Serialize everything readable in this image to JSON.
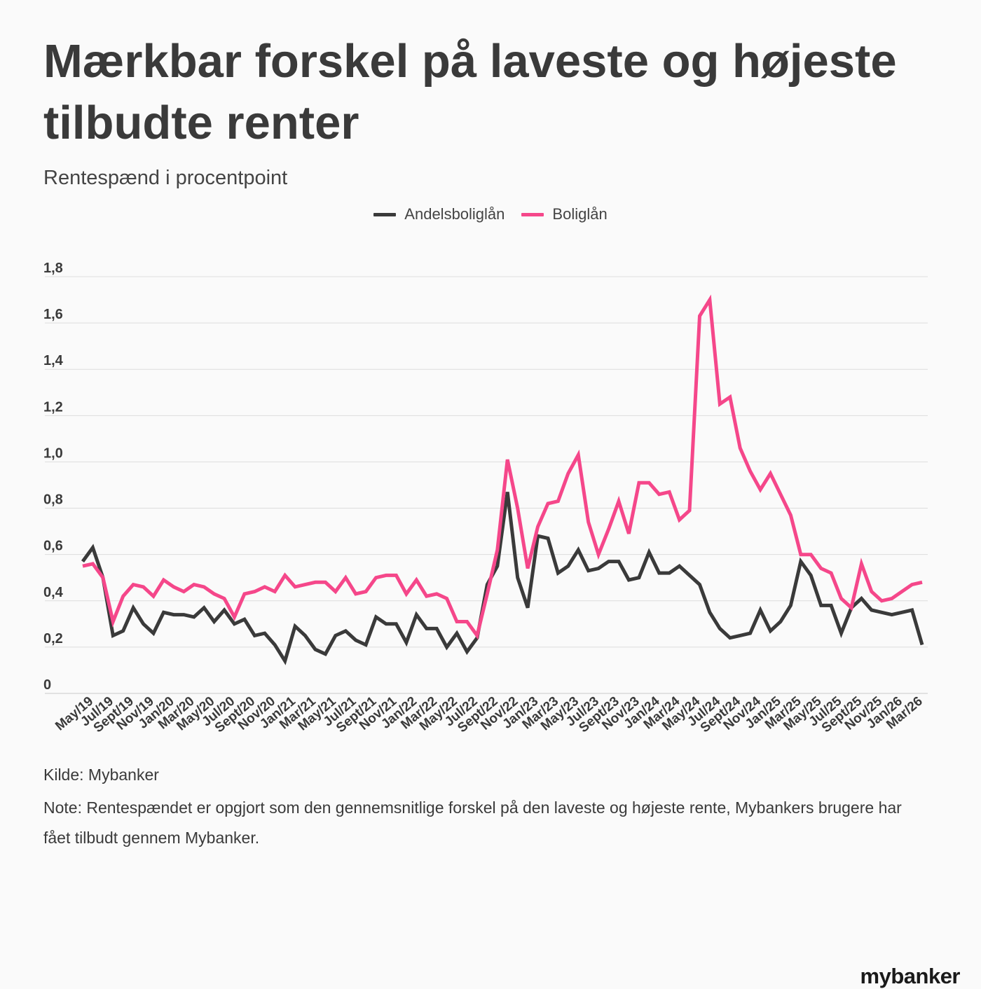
{
  "header": {
    "title": "Mærkbar forskel på laveste og højeste tilbudte renter",
    "subtitle": "Rentespænd i procentpoint"
  },
  "legend": [
    {
      "label": "Andelsboliglån",
      "color": "#3a3a3a"
    },
    {
      "label": "Boliglån",
      "color": "#f5478a"
    }
  ],
  "footer": {
    "source": "Kilde: Mybanker",
    "note": "Note: Rentespændet er opgjort som den gennemsnitlige forskel på den laveste og højeste rente, Mybankers brugere har fået tilbudt gennem Mybanker."
  },
  "brand": {
    "logo_text": "mybanker"
  },
  "chart_data": {
    "type": "line",
    "grid": true,
    "ylim": [
      0,
      1.8
    ],
    "y_ticks": [
      "0",
      "0,2",
      "0,4",
      "0,6",
      "0,8",
      "1,0",
      "1,2",
      "1,4",
      "1,6",
      "1,8"
    ],
    "x_tick_labels": [
      "May/19",
      "Jul/19",
      "Sept/19",
      "Nov/19",
      "Jan/20",
      "Mar/20",
      "May/20",
      "Jul/20",
      "Sept/20",
      "Nov/20",
      "Jan/21",
      "Mar/21",
      "May/21",
      "Jul/21",
      "Sept/21",
      "Nov/21",
      "Jan/22",
      "Mar/22",
      "May/22",
      "Jul/22",
      "Sept/22",
      "Nov/22",
      "Jan/23",
      "Mar/23",
      "May/23",
      "Jul/23",
      "Sept/23",
      "Nov/23",
      "Jan/24",
      "Mar/24",
      "May/24",
      "Jul/24",
      "Sept/24",
      "Nov/24",
      "Jan/25",
      "Mar/25",
      "May/25",
      "Jul/25",
      "Sept/25",
      "Nov/25",
      "Jan/26",
      "Mar/26"
    ],
    "series": [
      {
        "name": "Andelsboliglån",
        "color": "#3a3a3a",
        "values": [
          0.57,
          0.63,
          0.5,
          0.25,
          0.27,
          0.37,
          0.3,
          0.26,
          0.35,
          0.34,
          0.34,
          0.33,
          0.37,
          0.31,
          0.36,
          0.3,
          0.32,
          0.25,
          0.26,
          0.21,
          0.14,
          0.29,
          0.25,
          0.19,
          0.17,
          0.25,
          0.27,
          0.23,
          0.21,
          0.33,
          0.3,
          0.3,
          0.22,
          0.34,
          0.28,
          0.28,
          0.2,
          0.26,
          0.18,
          0.24,
          0.47,
          0.55,
          0.87,
          0.5,
          0.37,
          0.68,
          0.67,
          0.52,
          0.55,
          0.62,
          0.53,
          0.54,
          0.57,
          0.57,
          0.49,
          0.5,
          0.61,
          0.52,
          0.52,
          0.55,
          0.51,
          0.47,
          0.35,
          0.28,
          0.24,
          0.25,
          0.26,
          0.36,
          0.27,
          0.31,
          0.38,
          0.57,
          0.51,
          0.38,
          0.38,
          0.26,
          0.37,
          0.41,
          0.36,
          0.35,
          0.34,
          0.35,
          0.36,
          0.21
        ]
      },
      {
        "name": "Boliglån",
        "color": "#f5478a",
        "values": [
          0.55,
          0.56,
          0.5,
          0.31,
          0.42,
          0.47,
          0.46,
          0.42,
          0.49,
          0.46,
          0.44,
          0.47,
          0.46,
          0.43,
          0.41,
          0.33,
          0.43,
          0.44,
          0.46,
          0.44,
          0.51,
          0.46,
          0.47,
          0.48,
          0.48,
          0.44,
          0.5,
          0.43,
          0.44,
          0.5,
          0.51,
          0.51,
          0.43,
          0.49,
          0.42,
          0.43,
          0.41,
          0.31,
          0.31,
          0.25,
          0.43,
          0.62,
          1.01,
          0.8,
          0.54,
          0.72,
          0.82,
          0.83,
          0.95,
          1.03,
          0.74,
          0.6,
          0.71,
          0.83,
          0.69,
          0.91,
          0.91,
          0.86,
          0.87,
          0.75,
          0.79,
          1.63,
          1.7,
          1.25,
          1.28,
          1.06,
          0.96,
          0.88,
          0.95,
          0.86,
          0.77,
          0.6,
          0.6,
          0.54,
          0.52,
          0.41,
          0.37,
          0.56,
          0.44,
          0.4,
          0.41,
          0.44,
          0.47,
          0.48
        ]
      }
    ]
  }
}
